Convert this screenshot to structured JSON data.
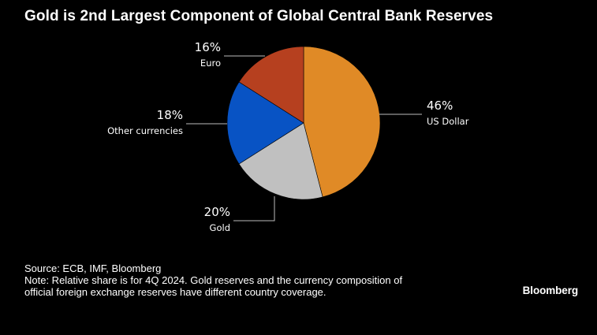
{
  "title": "Gold is 2nd Largest Component of Global Central Bank Reserves",
  "chart_data": {
    "type": "pie",
    "title": "Gold is 2nd Largest Component of Global Central Bank Reserves",
    "unit": "%",
    "slices": [
      {
        "label": "US Dollar",
        "value": 46,
        "display": "46%",
        "color": "#e08a26"
      },
      {
        "label": "Gold",
        "value": 20,
        "display": "20%",
        "color": "#c0c0c0"
      },
      {
        "label": "Other currencies",
        "value": 18,
        "display": "18%",
        "color": "#0853c4"
      },
      {
        "label": "Euro",
        "value": 16,
        "display": "16%",
        "color": "#b6401f"
      }
    ]
  },
  "notes": {
    "source": "Source: ECB, IMF, Bloomberg",
    "note_line1": "Note: Relative share is for 4Q 2024. Gold reserves and the currency composition of",
    "note_line2": "official foreign exchange reserves have different country coverage."
  },
  "brand": "Bloomberg"
}
